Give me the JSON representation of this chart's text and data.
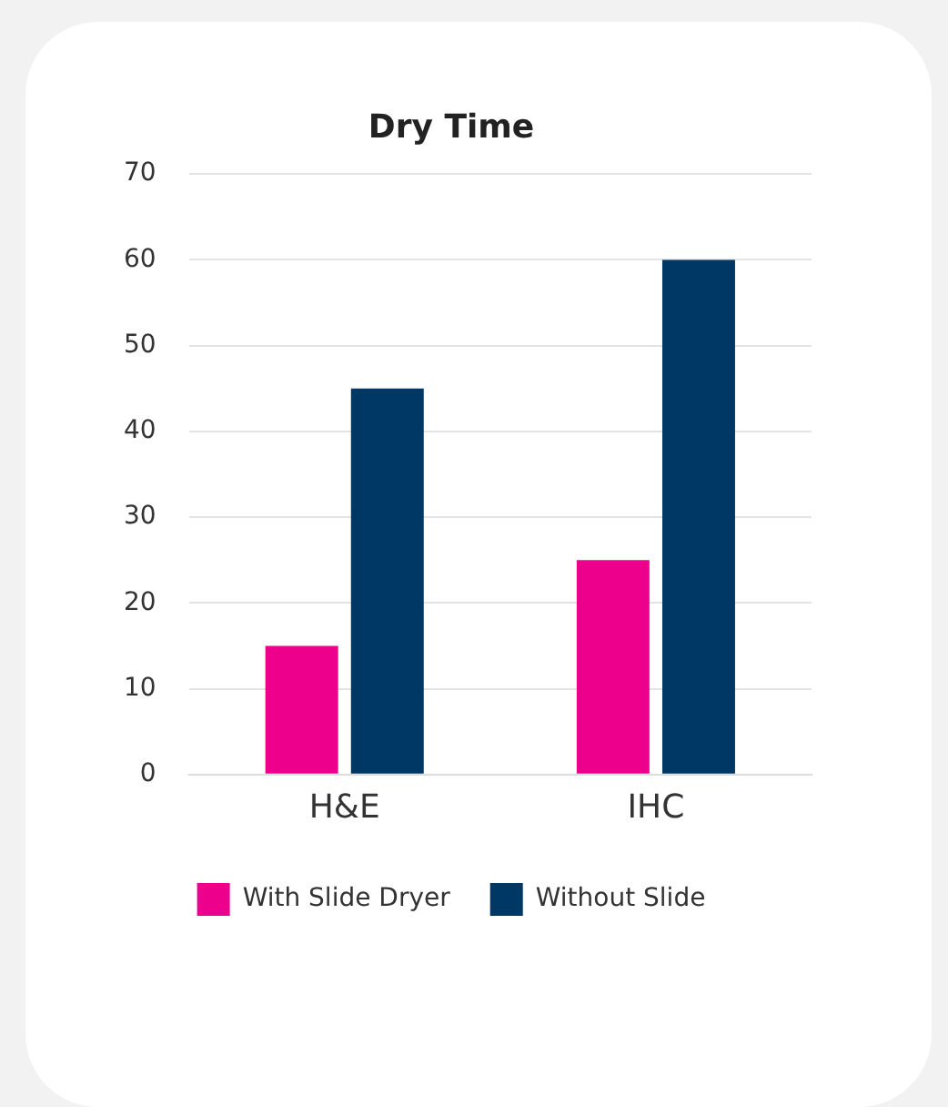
{
  "chart_data": {
    "type": "bar",
    "title": "Dry Time",
    "categories": [
      "H&E",
      "IHC"
    ],
    "series": [
      {
        "name": "With Slide Dryer",
        "color": "#ec008c",
        "values": [
          15,
          25
        ]
      },
      {
        "name": "Without Slide",
        "color": "#003865",
        "values": [
          45,
          60
        ]
      }
    ],
    "ylim": [
      0,
      70
    ],
    "yticks": [
      0,
      10,
      20,
      30,
      40,
      50,
      60,
      70
    ],
    "grid": "y",
    "legend": "bottom"
  }
}
